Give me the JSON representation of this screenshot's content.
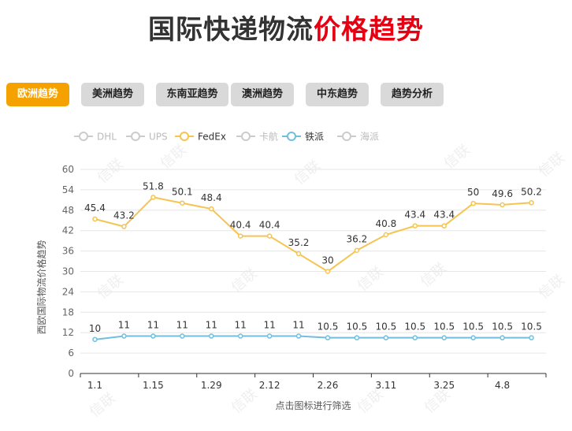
{
  "header": {
    "title_dark": "国际快递物流",
    "title_red": "价格趋势"
  },
  "tabs": [
    {
      "label": "欧洲趋势",
      "active": true
    },
    {
      "label": "美洲趋势",
      "active": false
    },
    {
      "label": "东南亚趋势",
      "active": false
    },
    {
      "label": "澳洲趋势",
      "active": false
    },
    {
      "label": "中东趋势",
      "active": false
    },
    {
      "label": "趋势分析",
      "active": false
    }
  ],
  "watermark": "信联",
  "colors": {
    "fedex": "#f5c451",
    "tiepai": "#71bfdc",
    "inactive": "#cccccc",
    "active_tab": "#f5a200"
  },
  "chart_data": {
    "type": "line",
    "ylabel": "西欧国际物流价格趋势",
    "xlabel": "点击图标进行筛选",
    "ylim": [
      0,
      60
    ],
    "yticks": [
      0,
      6,
      12,
      18,
      24,
      30,
      36,
      42,
      48,
      54,
      60
    ],
    "x_tick_labels": [
      "1.1",
      "1.15",
      "1.29",
      "2.12",
      "2.26",
      "3.11",
      "3.25",
      "4.8"
    ],
    "legend_position": "top-left",
    "legend": [
      {
        "name": "DHL",
        "enabled": false
      },
      {
        "name": "UPS",
        "enabled": false
      },
      {
        "name": "FedEx",
        "enabled": true
      },
      {
        "name": "卡航",
        "enabled": false
      },
      {
        "name": "铁派",
        "enabled": true
      },
      {
        "name": "海派",
        "enabled": false
      }
    ],
    "series": [
      {
        "name": "FedEx",
        "values": [
          45.4,
          43.2,
          51.8,
          50.1,
          48.4,
          40.4,
          40.4,
          35.2,
          30,
          36.2,
          40.8,
          43.4,
          43.4,
          50,
          49.6,
          50.2
        ]
      },
      {
        "name": "铁派",
        "values": [
          10,
          11,
          11,
          11,
          11,
          11,
          11,
          11,
          10.5,
          10.5,
          10.5,
          10.5,
          10.5,
          10.5,
          10.5,
          10.5
        ]
      }
    ]
  }
}
